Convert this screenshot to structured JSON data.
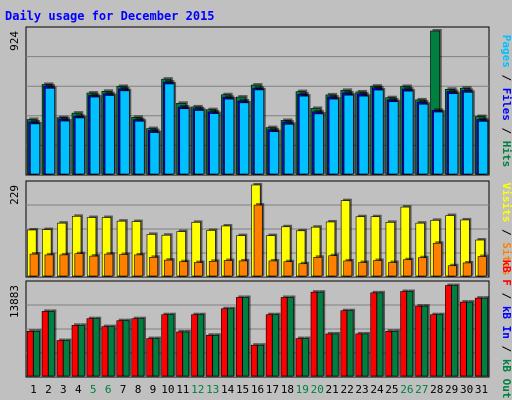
{
  "chart_data": {
    "type": "bar",
    "title": "Daily usage for December 2015",
    "categories": [
      "1",
      "2",
      "3",
      "4",
      "5",
      "6",
      "7",
      "8",
      "9",
      "10",
      "11",
      "12",
      "13",
      "14",
      "15",
      "16",
      "17",
      "18",
      "19",
      "20",
      "21",
      "22",
      "23",
      "24",
      "25",
      "26",
      "27",
      "28",
      "29",
      "30",
      "31"
    ],
    "weekend_days": [
      5,
      6,
      12,
      13,
      19,
      20,
      26,
      27
    ],
    "panels": [
      {
        "name": "hits-files-pages",
        "ymax_label": "924",
        "ymax": 924,
        "axis_labels": [
          {
            "text": "Pages",
            "color": "#00c0ff"
          },
          {
            "text": " / ",
            "color": "#000000"
          },
          {
            "text": "Files",
            "color": "#0000ff"
          },
          {
            "text": " / ",
            "color": "#000000"
          },
          {
            "text": "Hits",
            "color": "#008040"
          }
        ],
        "series": [
          {
            "key": "hits",
            "color": "#008040",
            "values": [
              356,
              581,
              368,
              397,
              526,
              537,
              568,
              370,
              298,
              615,
              460,
              437,
              419,
              515,
              500,
              577,
              304,
              350,
              535,
              427,
              514,
              543,
              533,
              570,
              496,
              568,
              482,
              924,
              550,
              557,
              375
            ]
          },
          {
            "key": "files",
            "color": "#0000ff",
            "values": [
              340,
              570,
              359,
              376,
              510,
              521,
              552,
              355,
              285,
              596,
              436,
              425,
              405,
              498,
              475,
              556,
              290,
              339,
              518,
              405,
              500,
              526,
              520,
              559,
              482,
              551,
              468,
              415,
              535,
              542,
              356
            ]
          },
          {
            "key": "pages",
            "color": "#00c0ff",
            "values": [
              328,
              556,
              346,
              366,
              500,
              510,
              540,
              345,
              272,
              584,
              425,
              414,
              394,
              487,
              463,
              546,
              278,
              325,
              506,
              392,
              487,
              512,
              506,
              545,
              470,
              538,
              454,
              404,
              522,
              530,
              344
            ]
          }
        ]
      },
      {
        "name": "visits-sites",
        "ymax_label": "229",
        "ymax": 229,
        "axis_labels": [
          {
            "text": "Visits",
            "color": "#ffff00"
          },
          {
            "text": " / ",
            "color": "#000000"
          },
          {
            "text": "Sites",
            "color": "#ff8000"
          }
        ],
        "series": [
          {
            "key": "visits",
            "color": "#ffff00",
            "values": [
              117,
              118,
              134,
              151,
              148,
              148,
              139,
              138,
              106,
              104,
              113,
              136,
              116,
              127,
              103,
              229,
              103,
              125,
              115,
              124,
              137,
              190,
              150,
              150,
              136,
              174,
              134,
              141,
              153,
              142,
              92
            ]
          },
          {
            "key": "sites",
            "color": "#ff8000",
            "values": [
              57,
              55,
              55,
              58,
              52,
              57,
              56,
              55,
              49,
              42,
              38,
              36,
              39,
              41,
              40,
              179,
              40,
              38,
              33,
              49,
              53,
              40,
              36,
              41,
              36,
              43,
              48,
              84,
              28,
              35,
              51
            ]
          }
        ]
      },
      {
        "name": "kb",
        "ymax_label": "13883",
        "ymax": 13883,
        "axis_labels": [
          {
            "text": "kB F",
            "color": "#ff0000"
          },
          {
            "text": " / ",
            "color": "#000000"
          },
          {
            "text": "kB In",
            "color": "#0000ff"
          },
          {
            "text": " / ",
            "color": "#000000"
          },
          {
            "text": "kB Out",
            "color": "#008040"
          }
        ],
        "series": [
          {
            "key": "kb_f",
            "color": "#ff0000",
            "values": [
              6900,
              9900,
              5500,
              7800,
              8800,
              7600,
              8500,
              8800,
              5800,
              9400,
              6800,
              9400,
              6300,
              10300,
              12000,
              4800,
              9400,
              12000,
              5800,
              12800,
              6500,
              10000,
              6500,
              12700,
              6900,
              12900,
              10700,
              9400,
              13800,
              11300,
              11900
            ]
          },
          {
            "key": "kb_out",
            "color": "#008040",
            "values": [
              6900,
              9900,
              5500,
              7800,
              8800,
              7600,
              8500,
              8800,
              5800,
              9400,
              6800,
              9400,
              6300,
              10300,
              12000,
              4800,
              9400,
              12000,
              5800,
              12800,
              6500,
              10000,
              6500,
              12700,
              6900,
              12900,
              10700,
              9400,
              13800,
              11300,
              11900
            ]
          }
        ]
      }
    ],
    "legend": "right-vertical",
    "grid": true
  }
}
